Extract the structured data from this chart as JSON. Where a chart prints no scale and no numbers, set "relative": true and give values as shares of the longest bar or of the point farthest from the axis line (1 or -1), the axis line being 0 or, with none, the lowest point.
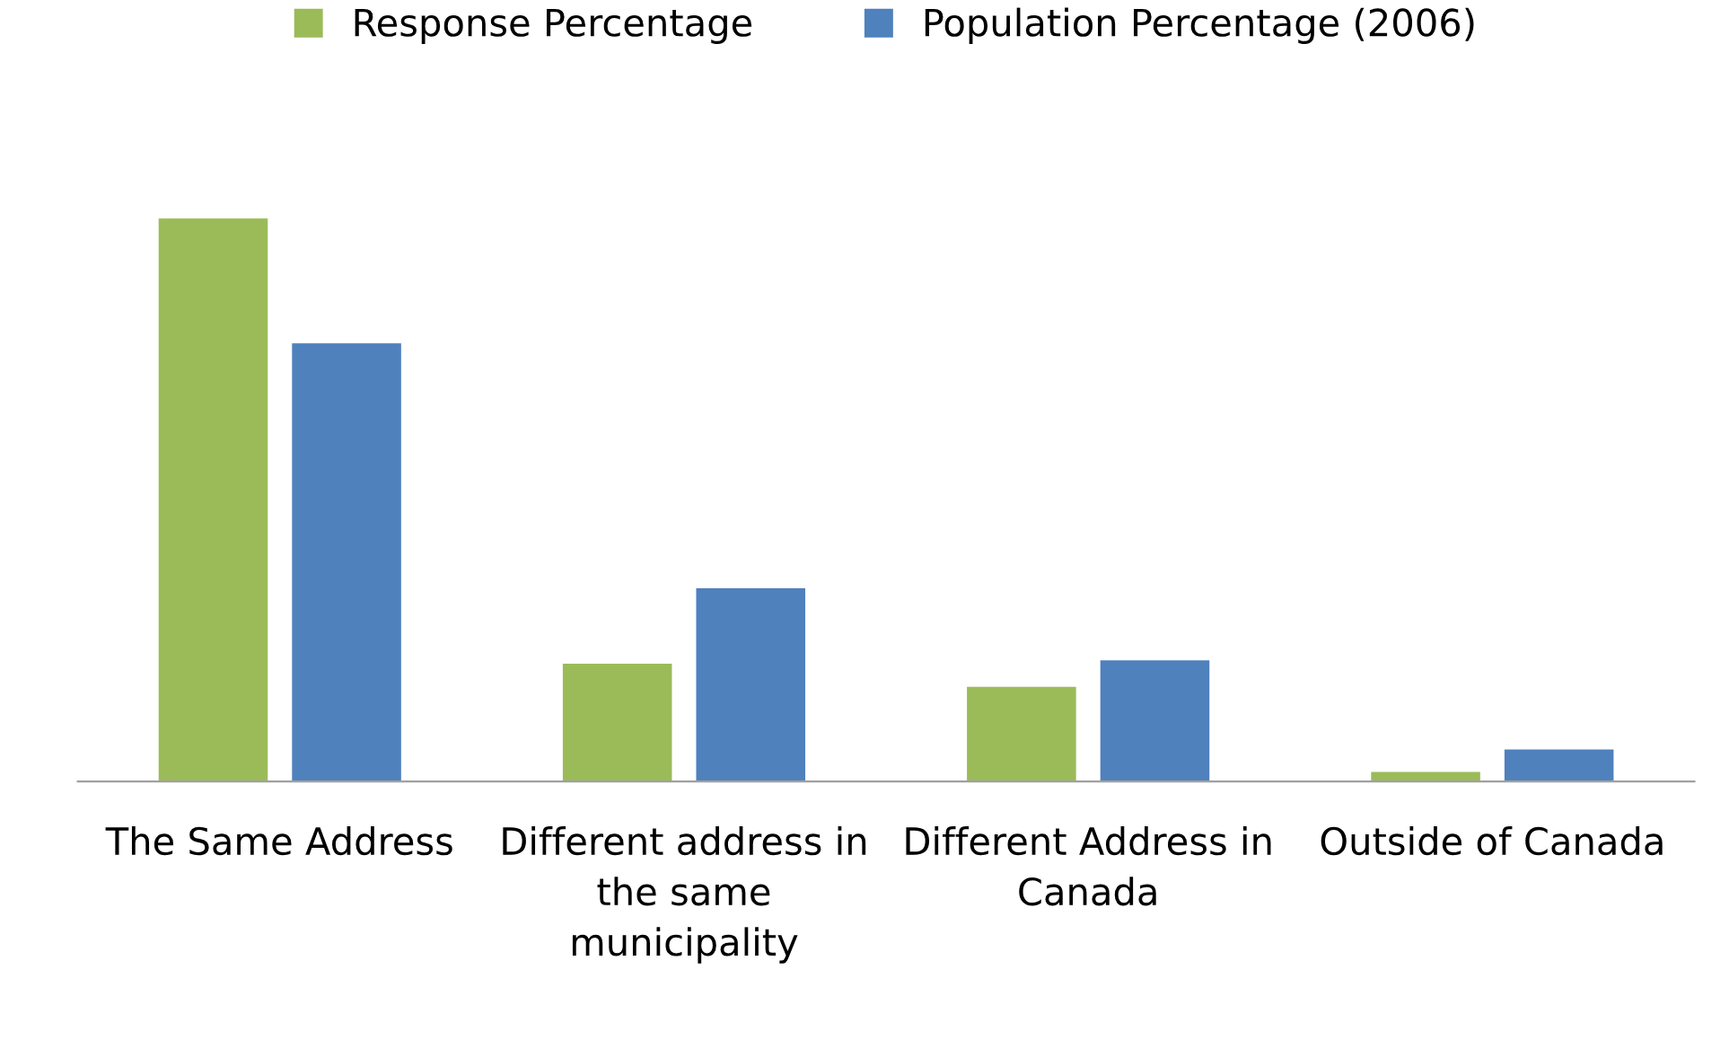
{
  "chart_data": {
    "type": "bar",
    "relative": true,
    "categories": [
      "The Same Address",
      "Different address in the same municipality",
      "Different Address in Canada",
      "Outside of Canada"
    ],
    "series": [
      {
        "name": "Response Percentage",
        "color": "#9bbb59",
        "values": [
          1,
          0.209,
          0.168,
          0.017
        ]
      },
      {
        "name": "Population Percentage (2006)",
        "color": "#4f81bd",
        "values": [
          0.778,
          0.343,
          0.215,
          0.057
        ]
      }
    ],
    "legend": "top",
    "grid": false
  }
}
